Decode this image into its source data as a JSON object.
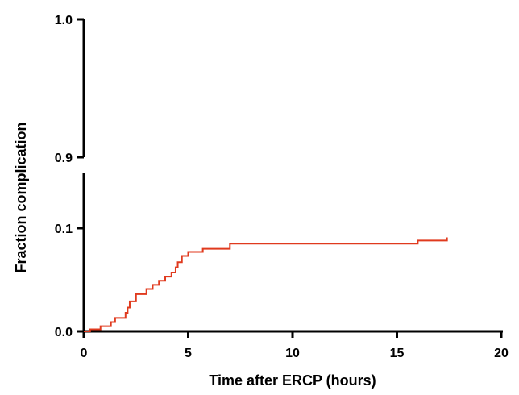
{
  "chart_data": {
    "type": "line",
    "subtype": "step (Kaplan-Meier cumulative incidence)",
    "title": "",
    "xlabel": "Time after ERCP (hours)",
    "ylabel": "Fraction complication",
    "xlim": [
      0,
      20
    ],
    "ylim_segments": [
      [
        0.0,
        0.1
      ],
      [
        0.9,
        1.0
      ]
    ],
    "axis_break": "between 0.1 and 0.9",
    "x_ticks": [
      0,
      5,
      10,
      15,
      20
    ],
    "y_ticks": [
      0.0,
      0.1,
      0.9,
      1.0
    ],
    "x_tick_labels": [
      "0",
      "5",
      "10",
      "15",
      "20"
    ],
    "y_tick_labels": [
      "0.0",
      "0.1",
      "0.9",
      "1.0"
    ],
    "grid": false,
    "legend": "none",
    "series": [
      {
        "color": "#e03a1e",
        "x": [
          0.3,
          0.8,
          1.3,
          1.5,
          2.0,
          2.1,
          2.2,
          2.5,
          3.0,
          3.3,
          3.6,
          3.9,
          4.2,
          4.4,
          4.5,
          4.7,
          5.0,
          5.7,
          7.0,
          16.0,
          17.4
        ],
        "y": [
          0.002,
          0.005,
          0.009,
          0.013,
          0.018,
          0.023,
          0.029,
          0.036,
          0.041,
          0.045,
          0.049,
          0.053,
          0.057,
          0.062,
          0.067,
          0.073,
          0.077,
          0.08,
          0.085,
          0.088,
          0.091
        ]
      }
    ]
  }
}
